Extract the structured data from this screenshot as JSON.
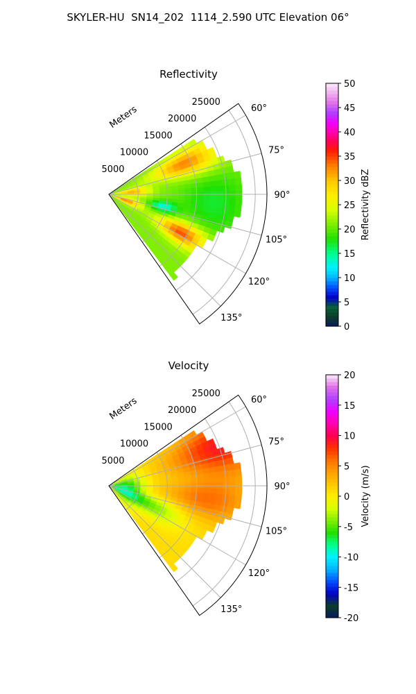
{
  "figure_title": "SKYLER-HU  SN14_202  1114_2.590 UTC Elevation 06°",
  "chart_data": [
    {
      "type": "heatmap",
      "subtype": "polar-sector-ppi",
      "title": "Reflectivity",
      "range_axis_label": "Meters",
      "range_ticks": [
        5000,
        10000,
        15000,
        20000,
        25000
      ],
      "range_max": 27000,
      "azimuth_ticks": [
        "60°",
        "75°",
        "90°",
        "105°",
        "120°",
        "135°"
      ],
      "azimuth_range": [
        55,
        145
      ],
      "colorbar": {
        "label": "Reflectivity dBZ",
        "min": 0,
        "max": 50,
        "ticks": [
          0,
          5,
          10,
          15,
          20,
          25,
          30,
          35,
          40,
          45,
          50
        ],
        "stops": [
          {
            "value": 0,
            "color": "#0a1a5e"
          },
          {
            "value": 2,
            "color": "#0b3d2a"
          },
          {
            "value": 4,
            "color": "#08603a"
          },
          {
            "value": 6,
            "color": "#0000c8"
          },
          {
            "value": 8,
            "color": "#0050ff"
          },
          {
            "value": 10,
            "color": "#00b4ff"
          },
          {
            "value": 12,
            "color": "#00f0ff"
          },
          {
            "value": 15,
            "color": "#00ff90"
          },
          {
            "value": 18,
            "color": "#20e000"
          },
          {
            "value": 21,
            "color": "#80ee00"
          },
          {
            "value": 24,
            "color": "#d8ff00"
          },
          {
            "value": 27,
            "color": "#ffee00"
          },
          {
            "value": 30,
            "color": "#ffc800"
          },
          {
            "value": 33,
            "color": "#ff8000"
          },
          {
            "value": 36,
            "color": "#ff2000"
          },
          {
            "value": 38,
            "color": "#ff0050"
          },
          {
            "value": 40,
            "color": "#ff00b0"
          },
          {
            "value": 42,
            "color": "#f000ff"
          },
          {
            "value": 44,
            "color": "#b040ff"
          },
          {
            "value": 46,
            "color": "#e070e8"
          },
          {
            "value": 48,
            "color": "#f0b0f0"
          },
          {
            "value": 50,
            "color": "#fbe8fb"
          }
        ]
      },
      "field": {
        "base": 21,
        "features": [
          {
            "r": 3000,
            "az": 110,
            "value": 33,
            "sigma_r": 1800,
            "sigma_az": 6
          },
          {
            "r": 4000,
            "az": 85,
            "value": 31,
            "sigma_r": 2000,
            "sigma_az": 6
          },
          {
            "r": 14000,
            "az": 68,
            "value": 33,
            "sigma_r": 4000,
            "sigma_az": 6
          },
          {
            "r": 14000,
            "az": 118,
            "value": 35,
            "sigma_r": 3000,
            "sigma_az": 5
          },
          {
            "r": 9500,
            "az": 103,
            "value": 13,
            "sigma_r": 1600,
            "sigma_az": 4
          },
          {
            "r": 18000,
            "az": 95,
            "value": 17,
            "sigma_r": 4000,
            "sigma_az": 12
          }
        ]
      }
    },
    {
      "type": "heatmap",
      "subtype": "polar-sector-ppi",
      "title": "Velocity",
      "range_axis_label": "Meters",
      "range_ticks": [
        5000,
        10000,
        15000,
        20000,
        25000
      ],
      "range_max": 27000,
      "azimuth_ticks": [
        "60°",
        "75°",
        "90°",
        "105°",
        "120°",
        "135°"
      ],
      "azimuth_range": [
        55,
        145
      ],
      "colorbar": {
        "label": "Velocity (m/s)",
        "min": -20,
        "max": 20,
        "ticks": [
          -20,
          -15,
          -10,
          -5,
          0,
          5,
          10,
          15,
          20
        ],
        "stops": [
          {
            "value": -20,
            "color": "#0a1a5e"
          },
          {
            "value": -18,
            "color": "#0b3d2a"
          },
          {
            "value": -16,
            "color": "#0000c8"
          },
          {
            "value": -14,
            "color": "#0050ff"
          },
          {
            "value": -12,
            "color": "#00b4ff"
          },
          {
            "value": -10,
            "color": "#00f0ff"
          },
          {
            "value": -8,
            "color": "#00ff90"
          },
          {
            "value": -6,
            "color": "#20e000"
          },
          {
            "value": -4,
            "color": "#80ee00"
          },
          {
            "value": -2,
            "color": "#d8ff00"
          },
          {
            "value": 0,
            "color": "#ffee00"
          },
          {
            "value": 2,
            "color": "#ffc800"
          },
          {
            "value": 4,
            "color": "#ffa000"
          },
          {
            "value": 6,
            "color": "#ff7000"
          },
          {
            "value": 8,
            "color": "#ff3000"
          },
          {
            "value": 10,
            "color": "#ff0050"
          },
          {
            "value": 12,
            "color": "#ff00b0"
          },
          {
            "value": 14,
            "color": "#f000ff"
          },
          {
            "value": 16,
            "color": "#b040ff"
          },
          {
            "value": 18,
            "color": "#e070e8"
          },
          {
            "value": 20,
            "color": "#fbe8fb"
          }
        ]
      },
      "field": {
        "base": 1,
        "features": [
          {
            "r": 2500,
            "az": 100,
            "value": -8,
            "sigma_r": 2500,
            "sigma_az": 25
          },
          {
            "r": 8000,
            "az": 115,
            "value": -4,
            "sigma_r": 4000,
            "sigma_az": 8
          },
          {
            "r": 20000,
            "az": 70,
            "value": 9,
            "sigma_r": 6000,
            "sigma_az": 10
          },
          {
            "r": 17000,
            "az": 98,
            "value": 6,
            "sigma_r": 5000,
            "sigma_az": 8
          },
          {
            "r": 24000,
            "az": 58,
            "value": 13,
            "sigma_r": 2000,
            "sigma_az": 3
          }
        ]
      }
    }
  ]
}
